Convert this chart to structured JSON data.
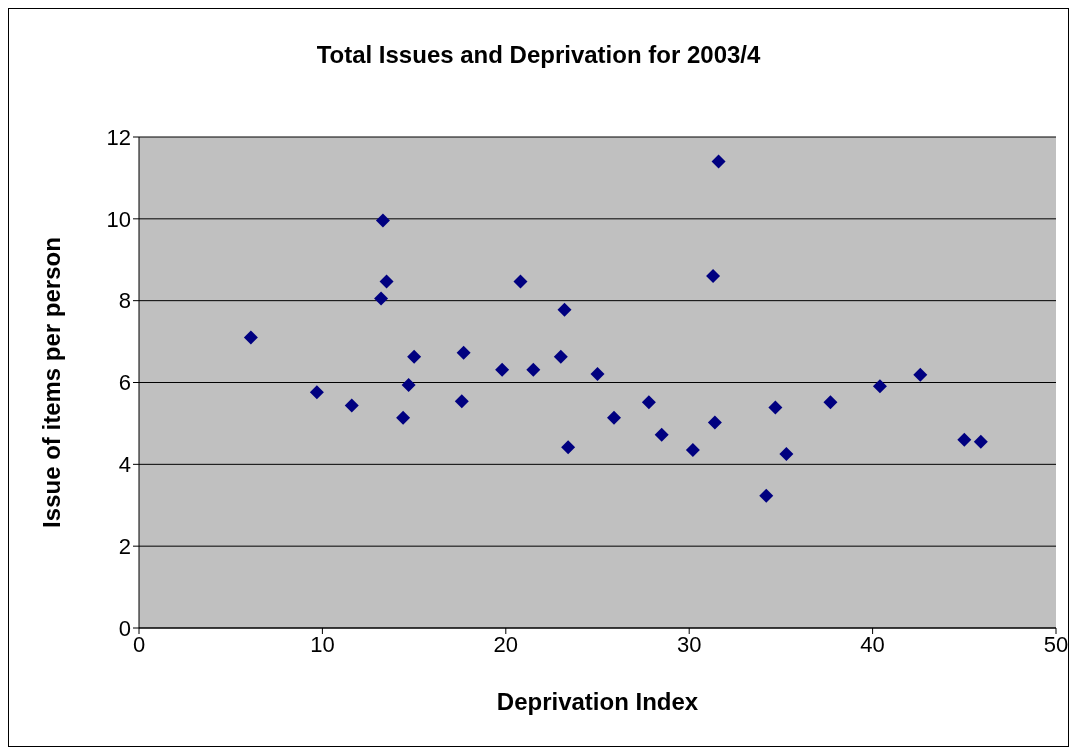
{
  "chart_data": {
    "type": "scatter",
    "title": "Total Issues and Deprivation for 2003/4",
    "xlabel": "Deprivation Index",
    "ylabel": "Issue of items per person",
    "x": [
      6.1,
      9.7,
      11.6,
      13.3,
      13.2,
      13.5,
      14.4,
      14.7,
      15.0,
      17.7,
      17.6,
      19.8,
      20.8,
      21.5,
      23.0,
      23.2,
      23.4,
      25.0,
      25.9,
      27.8,
      28.5,
      30.2,
      31.3,
      31.6,
      31.4,
      34.2,
      34.7,
      35.3,
      37.7,
      40.4,
      42.6,
      45.0,
      45.9
    ],
    "series": [
      {
        "color": "#000080",
        "values": [
          7.1,
          5.76,
          5.44,
          9.96,
          8.05,
          8.47,
          5.14,
          5.94,
          6.63,
          6.73,
          5.54,
          6.31,
          8.47,
          6.31,
          6.63,
          7.78,
          4.42,
          6.21,
          5.14,
          5.52,
          4.72,
          4.35,
          8.6,
          11.4,
          5.02,
          3.23,
          5.39,
          4.25,
          5.52,
          5.91,
          6.19,
          4.6,
          4.55
        ]
      }
    ],
    "xlim": [
      0,
      50
    ],
    "xticks": [
      0,
      10,
      20,
      30,
      40,
      50
    ],
    "ylim": [
      0,
      12
    ],
    "yticks": [
      0,
      2,
      4,
      6,
      8,
      10,
      12
    ],
    "grid": "y",
    "marker": "diamond"
  }
}
